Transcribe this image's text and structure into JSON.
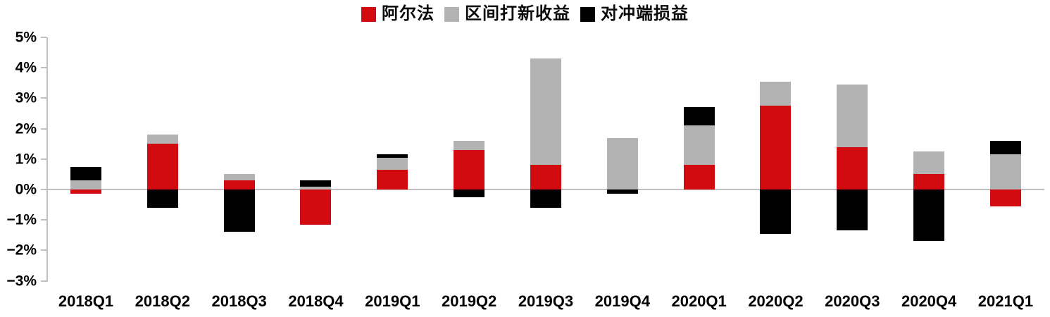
{
  "chart_data": {
    "type": "bar",
    "stacked": true,
    "title": "",
    "xlabel": "",
    "ylabel": "",
    "unit": "%",
    "grid": false,
    "legend_position": "top-center",
    "axis_color": "#c0c0c0",
    "categories": [
      "2018Q1",
      "2018Q2",
      "2018Q3",
      "2018Q4",
      "2019Q1",
      "2019Q2",
      "2019Q3",
      "2019Q4",
      "2020Q1",
      "2020Q2",
      "2020Q3",
      "2020Q4",
      "2021Q1"
    ],
    "series": [
      {
        "name": "阿尔法",
        "color": "#d20b10",
        "values": [
          -0.15,
          1.5,
          0.3,
          -1.15,
          0.65,
          1.3,
          0.8,
          0,
          0.8,
          2.75,
          1.4,
          0.5,
          -0.55
        ]
      },
      {
        "name": "区间打新收益",
        "color": "#b3b3b3",
        "values": [
          0.3,
          0.3,
          0.2,
          0.1,
          0.4,
          0.3,
          3.5,
          1.7,
          1.3,
          0.8,
          2.05,
          0.75,
          1.15
        ]
      },
      {
        "name": "对冲端损益",
        "color": "#000000",
        "values": [
          0.45,
          -0.6,
          -1.4,
          0.2,
          0.1,
          -0.25,
          -0.6,
          -0.15,
          0.6,
          -1.45,
          -1.35,
          -1.7,
          0.45
        ]
      }
    ],
    "y_axis": {
      "min": -3,
      "max": 5,
      "ticks": [
        {
          "value": 5,
          "label": "5%"
        },
        {
          "value": 4,
          "label": "4%"
        },
        {
          "value": 3,
          "label": "3%"
        },
        {
          "value": 2,
          "label": "2%"
        },
        {
          "value": 1,
          "label": "1%"
        },
        {
          "value": 0,
          "label": "0%"
        },
        {
          "value": -1,
          "label": "−1%"
        },
        {
          "value": -2,
          "label": "−2%"
        },
        {
          "value": -3,
          "label": "−3%"
        }
      ]
    }
  }
}
